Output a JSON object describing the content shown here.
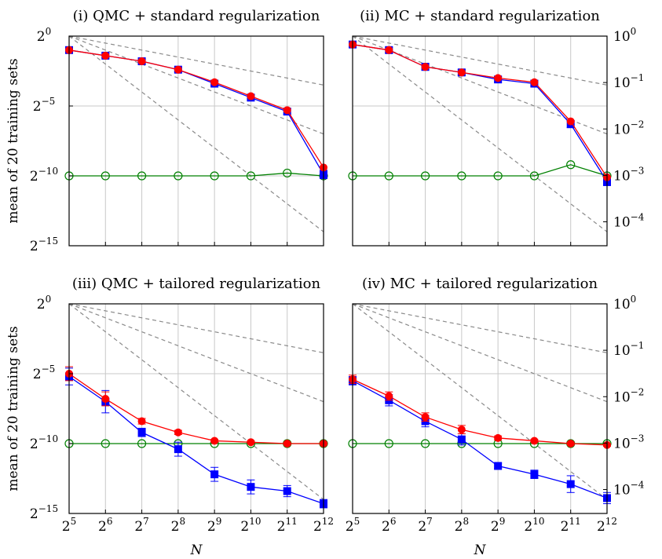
{
  "chart_data": {
    "type": "line",
    "shared": {
      "x": [
        5,
        6,
        7,
        8,
        9,
        10,
        11,
        12
      ],
      "x_tick_labels": [
        "2^5",
        "2^6",
        "2^7",
        "2^8",
        "2^9",
        "2^10",
        "2^11",
        "2^12"
      ],
      "xlabel": "N",
      "ylabel": "mean of 20 training sets",
      "left_axis": {
        "scale": "log2",
        "ylim_exponent": [
          -15,
          0
        ],
        "tick_exponents": [
          0,
          -5,
          -10,
          -15
        ]
      },
      "right_axis": {
        "scale": "log10",
        "tick_exponents": [
          0,
          -1,
          -2,
          -3,
          -4
        ]
      },
      "colors": {
        "blue": "#0000ff",
        "red": "#ff0000",
        "green": "#008000",
        "reference": "#8a8a8a"
      },
      "reference_slopes": [
        -0.5,
        -1,
        -2
      ]
    },
    "panels": [
      {
        "title": "(i) QMC + standard regularization",
        "series": [
          {
            "name": "blue",
            "marker": "square",
            "values_log2": [
              -1.0,
              -1.4,
              -1.8,
              -2.4,
              -3.4,
              -4.4,
              -5.4,
              -9.9
            ],
            "err": [
              0.2,
              0.15,
              0.15,
              0.15,
              0.15,
              0.2,
              0.2,
              0.3
            ]
          },
          {
            "name": "red",
            "marker": "circle",
            "values_log2": [
              -1.0,
              -1.4,
              -1.8,
              -2.4,
              -3.3,
              -4.3,
              -5.3,
              -9.4
            ],
            "err": [
              0,
              0,
              0,
              0,
              0,
              0,
              0,
              0
            ]
          },
          {
            "name": "green",
            "marker": "open-circle",
            "values_log2": [
              -10.0,
              -10.0,
              -10.0,
              -10.0,
              -10.0,
              -10.0,
              -9.8,
              -10.0
            ],
            "err": [
              0,
              0,
              0,
              0,
              0,
              0,
              0,
              0
            ]
          }
        ]
      },
      {
        "title": "(ii) MC + standard regularization",
        "series": [
          {
            "name": "blue",
            "marker": "square",
            "values_log2": [
              -0.6,
              -1.0,
              -2.2,
              -2.6,
              -3.1,
              -3.4,
              -6.3,
              -10.4
            ],
            "err": [
              0.2,
              0.2,
              0.25,
              0.2,
              0.2,
              0.2,
              0.25,
              0.3
            ]
          },
          {
            "name": "red",
            "marker": "circle",
            "values_log2": [
              -0.6,
              -1.0,
              -2.2,
              -2.6,
              -3.0,
              -3.3,
              -6.1,
              -10.1
            ],
            "err": [
              0,
              0,
              0,
              0,
              0,
              0,
              0,
              0
            ]
          },
          {
            "name": "green",
            "marker": "open-circle",
            "values_log2": [
              -10.0,
              -10.0,
              -10.0,
              -10.0,
              -10.0,
              -10.0,
              -9.2,
              -10.0
            ],
            "err": [
              0,
              0,
              0,
              0,
              0,
              0,
              0,
              0
            ]
          }
        ]
      },
      {
        "title": "(iii) QMC + tailored regularization",
        "series": [
          {
            "name": "blue",
            "marker": "square",
            "values_log2": [
              -5.2,
              -7.0,
              -9.2,
              -10.4,
              -12.2,
              -13.1,
              -13.4,
              -14.3
            ],
            "err": [
              0.6,
              0.8,
              0.3,
              0.5,
              0.5,
              0.5,
              0.4,
              0.3
            ]
          },
          {
            "name": "red",
            "marker": "circle",
            "values_log2": [
              -5.0,
              -6.8,
              -8.4,
              -9.2,
              -9.8,
              -9.9,
              -10.0,
              -10.0
            ],
            "err": [
              0.5,
              0.5,
              0.2,
              0.15,
              0.1,
              0.1,
              0.1,
              0.1
            ]
          },
          {
            "name": "green",
            "marker": "open-circle",
            "values_log2": [
              -10.0,
              -10.0,
              -10.0,
              -10.0,
              -10.0,
              -10.0,
              -10.0,
              -10.0
            ],
            "err": [
              0,
              0,
              0,
              0,
              0,
              0,
              0,
              0
            ]
          }
        ]
      },
      {
        "title": "(iv) MC + tailored regularization",
        "series": [
          {
            "name": "blue",
            "marker": "square",
            "values_log2": [
              -5.5,
              -6.9,
              -8.4,
              -9.7,
              -11.6,
              -12.2,
              -12.9,
              -13.9
            ],
            "err": [
              0.3,
              0.4,
              0.4,
              0.4,
              0.2,
              0.3,
              0.6,
              0.4
            ]
          },
          {
            "name": "red",
            "marker": "circle",
            "values_log2": [
              -5.4,
              -6.6,
              -8.1,
              -9.0,
              -9.6,
              -9.8,
              -10.0,
              -10.1
            ],
            "err": [
              0.3,
              0.3,
              0.3,
              0.3,
              0.15,
              0.1,
              0.1,
              0.1
            ]
          },
          {
            "name": "green",
            "marker": "open-circle",
            "values_log2": [
              -10.0,
              -10.0,
              -10.0,
              -10.0,
              -10.0,
              -10.0,
              -10.0,
              -10.0
            ],
            "err": [
              0,
              0,
              0,
              0,
              0,
              0,
              0,
              0
            ]
          }
        ]
      }
    ]
  }
}
